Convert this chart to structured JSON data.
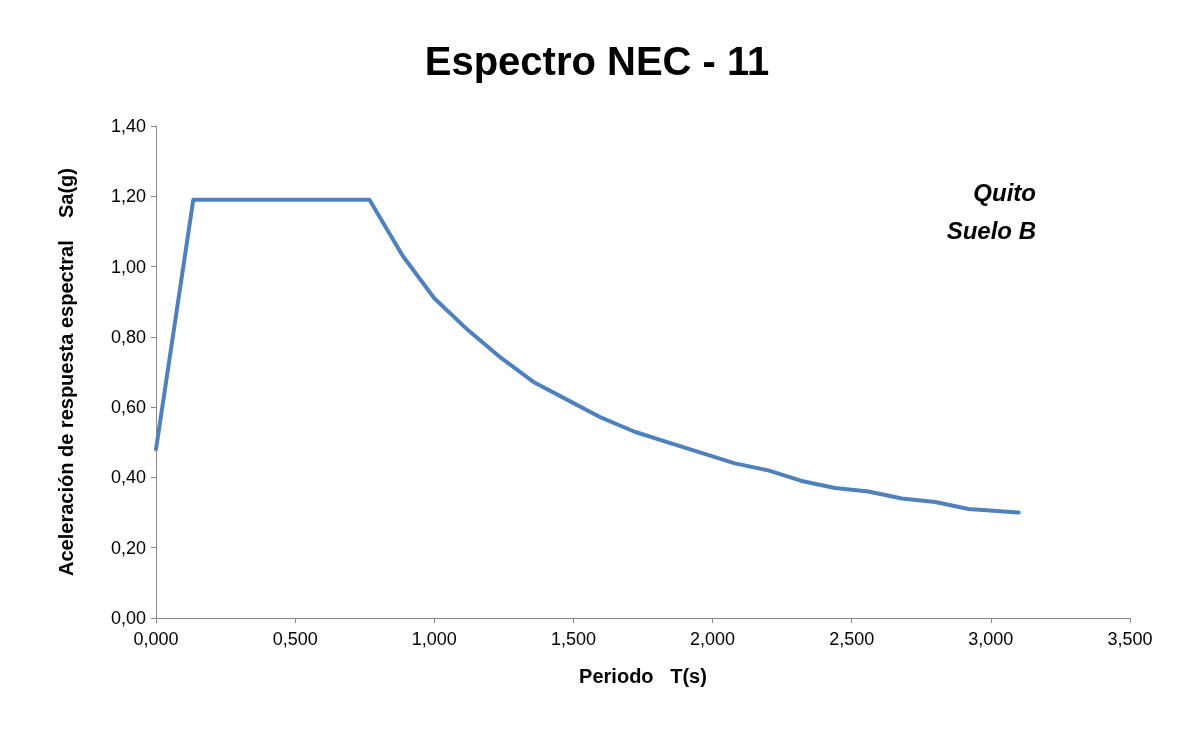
{
  "chart_data": {
    "type": "line",
    "title": "Espectro NEC - 11",
    "xlabel": "Periodo   T(s)",
    "ylabel": "Aceleración de respuesta espectral    Sa(g)",
    "annotations": [
      "Quito",
      "Suelo B"
    ],
    "x": [
      0,
      0.134,
      0.767,
      0.887,
      1.0,
      1.12,
      1.24,
      1.36,
      1.48,
      1.6,
      1.72,
      1.84,
      1.96,
      2.08,
      2.2,
      2.32,
      2.44,
      2.56,
      2.68,
      2.8,
      2.92,
      3.1
    ],
    "series": [
      {
        "color": "#4f81bd",
        "values": [
          0.48,
          1.19,
          1.19,
          1.03,
          0.91,
          0.82,
          0.74,
          0.67,
          0.62,
          0.57,
          0.53,
          0.5,
          0.47,
          0.44,
          0.42,
          0.39,
          0.37,
          0.36,
          0.34,
          0.33,
          0.31,
          0.3
        ]
      }
    ],
    "xlim": [
      0,
      3.5
    ],
    "xticks": [
      {
        "value": 0,
        "label": "0,000"
      },
      {
        "value": 0.5,
        "label": "0,500"
      },
      {
        "value": 1,
        "label": "1,000"
      },
      {
        "value": 1.5,
        "label": "1,500"
      },
      {
        "value": 2,
        "label": "2,000"
      },
      {
        "value": 2.5,
        "label": "2,500"
      },
      {
        "value": 3,
        "label": "3,000"
      },
      {
        "value": 3.5,
        "label": "3,500"
      }
    ],
    "ylim": [
      0,
      1.4
    ],
    "yticks": [
      {
        "value": 0,
        "label": "0,00"
      },
      {
        "value": 0.2,
        "label": "0,20"
      },
      {
        "value": 0.4,
        "label": "0,40"
      },
      {
        "value": 0.6,
        "label": "0,60"
      },
      {
        "value": 0.8,
        "label": "0,80"
      },
      {
        "value": 1,
        "label": "1,00"
      },
      {
        "value": 1.2,
        "label": "1,20"
      },
      {
        "value": 1.4,
        "label": "1,40"
      }
    ],
    "grid": false,
    "marker": "none",
    "line_style": "solid"
  }
}
